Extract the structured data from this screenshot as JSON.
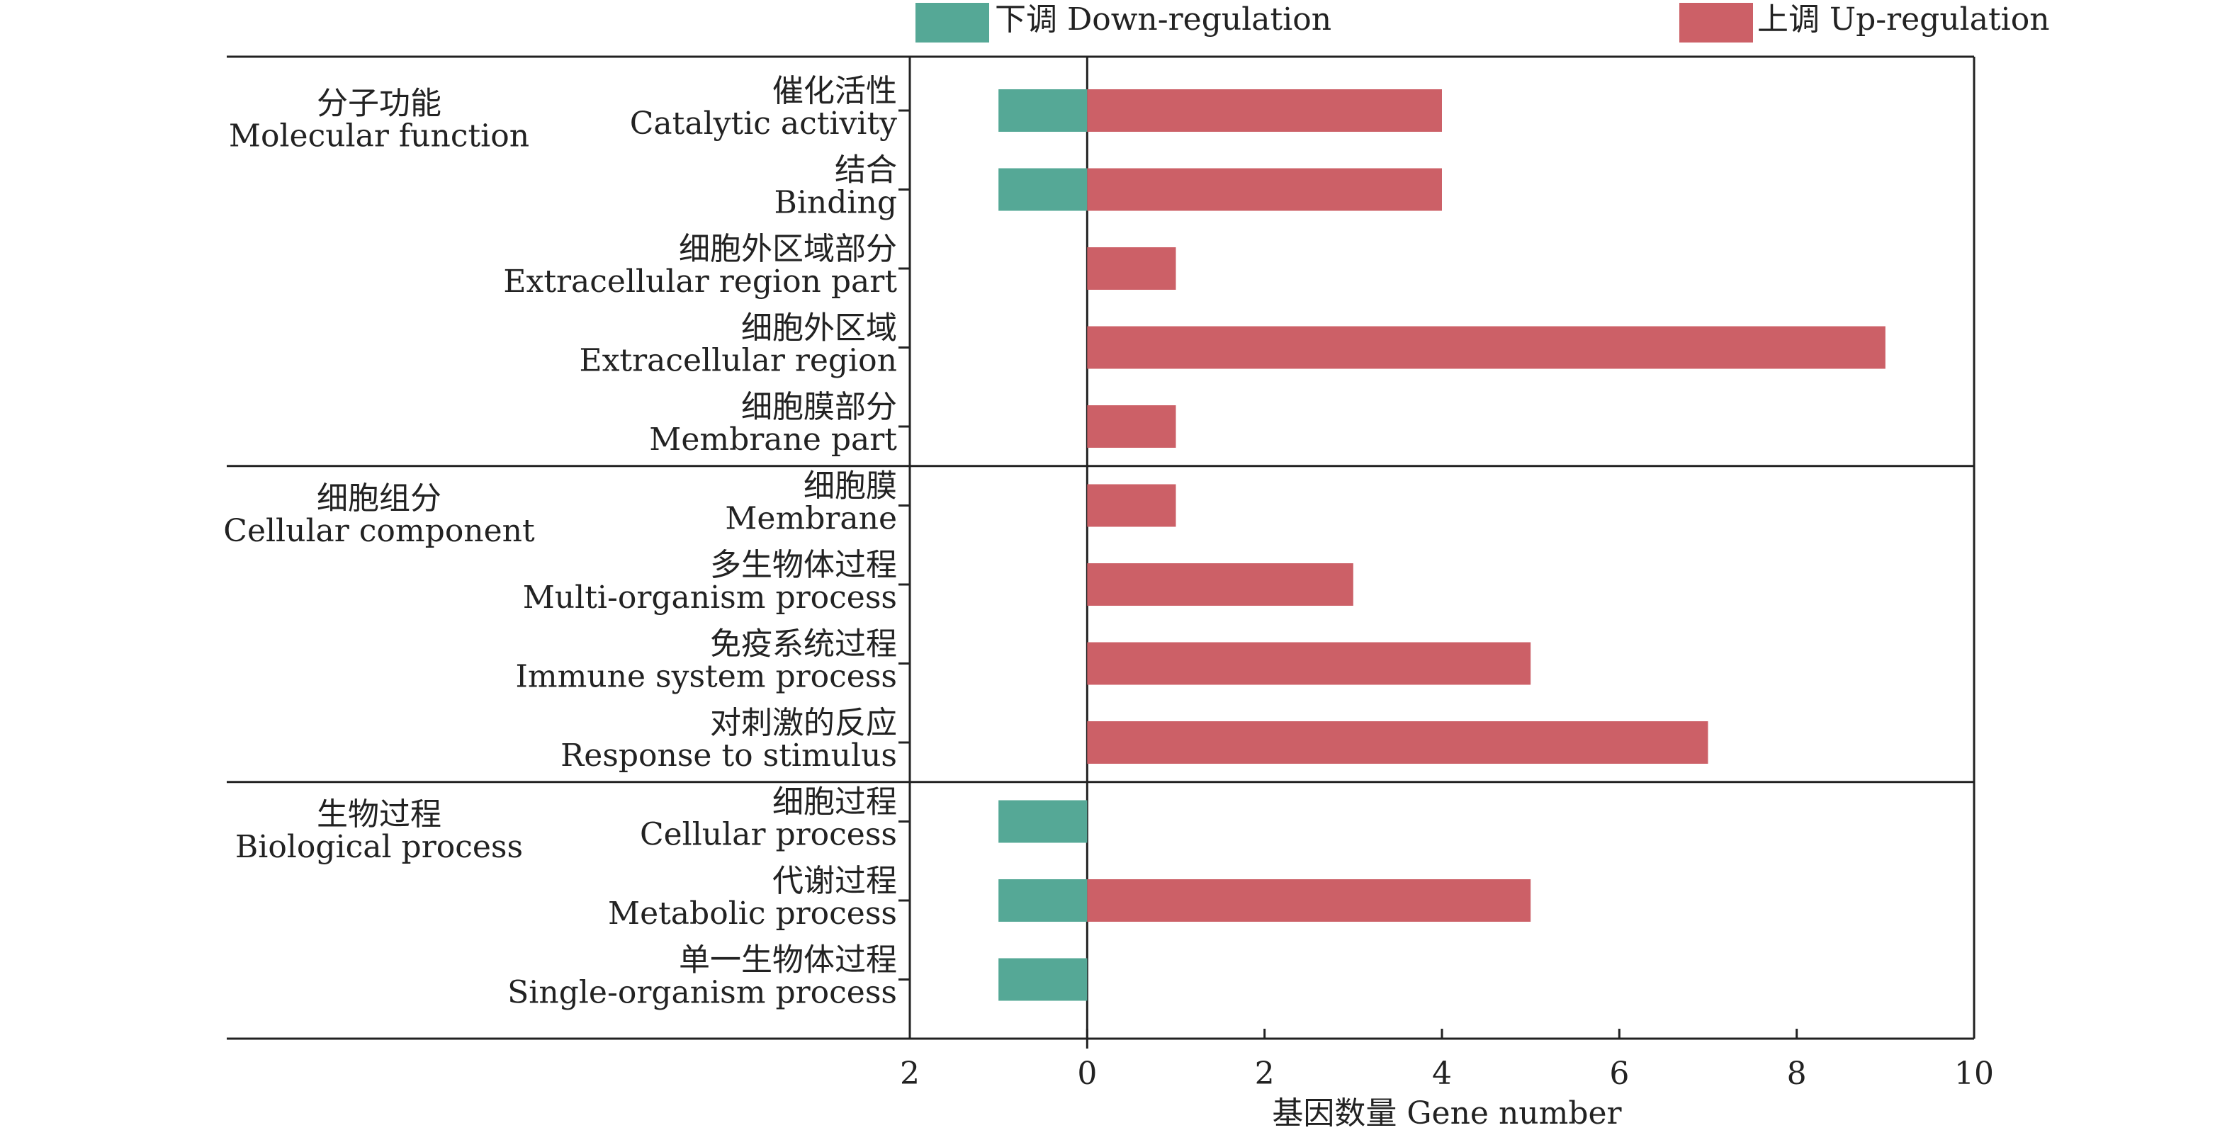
{
  "chart_data": {
    "type": "bar",
    "orientation": "horizontal",
    "x_tick_labels": [
      "2",
      "0",
      "2",
      "4",
      "6",
      "8",
      "10"
    ],
    "xlim": [
      -2,
      10
    ],
    "xlabel": "基因数量 Gene number",
    "legend": [
      {
        "label": "下调 Down-regulation",
        "color": "#55a896"
      },
      {
        "label": "上调 Up-regulation",
        "color": "#cc6067"
      }
    ],
    "legend_placement": "top",
    "colors": {
      "down": "#55a896",
      "up": "#cc6067",
      "axis": "#222222"
    },
    "groups": [
      {
        "zh": "分子功能",
        "en": "Molecular function",
        "category_count": 5
      },
      {
        "zh": "细胞组分",
        "en": "Cellular component",
        "category_count": 4
      },
      {
        "zh": "生物过程",
        "en": "Biological process",
        "category_count": 3
      }
    ],
    "categories": [
      {
        "zh": "催化活性",
        "en": "Catalytic activity",
        "down": 1,
        "up": 4
      },
      {
        "zh": "结合",
        "en": "Binding",
        "down": 1,
        "up": 4
      },
      {
        "zh": "细胞外区域部分",
        "en": "Extracellular region part",
        "down": 0,
        "up": 1
      },
      {
        "zh": "细胞外区域",
        "en": "Extracellular region",
        "down": 0,
        "up": 9
      },
      {
        "zh": "细胞膜部分",
        "en": "Membrane part",
        "down": 0,
        "up": 1
      },
      {
        "zh": "细胞膜",
        "en": "Membrane",
        "down": 0,
        "up": 1
      },
      {
        "zh": "多生物体过程",
        "en": "Multi-organism process",
        "down": 0,
        "up": 3
      },
      {
        "zh": "免疫系统过程",
        "en": "Immune system process",
        "down": 0,
        "up": 5
      },
      {
        "zh": "对刺激的反应",
        "en": "Response to stimulus",
        "down": 0,
        "up": 7
      },
      {
        "zh": "细胞过程",
        "en": "Cellular process",
        "down": 1,
        "up": 0
      },
      {
        "zh": "代谢过程",
        "en": "Metabolic process",
        "down": 1,
        "up": 5
      },
      {
        "zh": "单一生物体过程",
        "en": "Single-organism process",
        "down": 1,
        "up": 0
      }
    ]
  }
}
